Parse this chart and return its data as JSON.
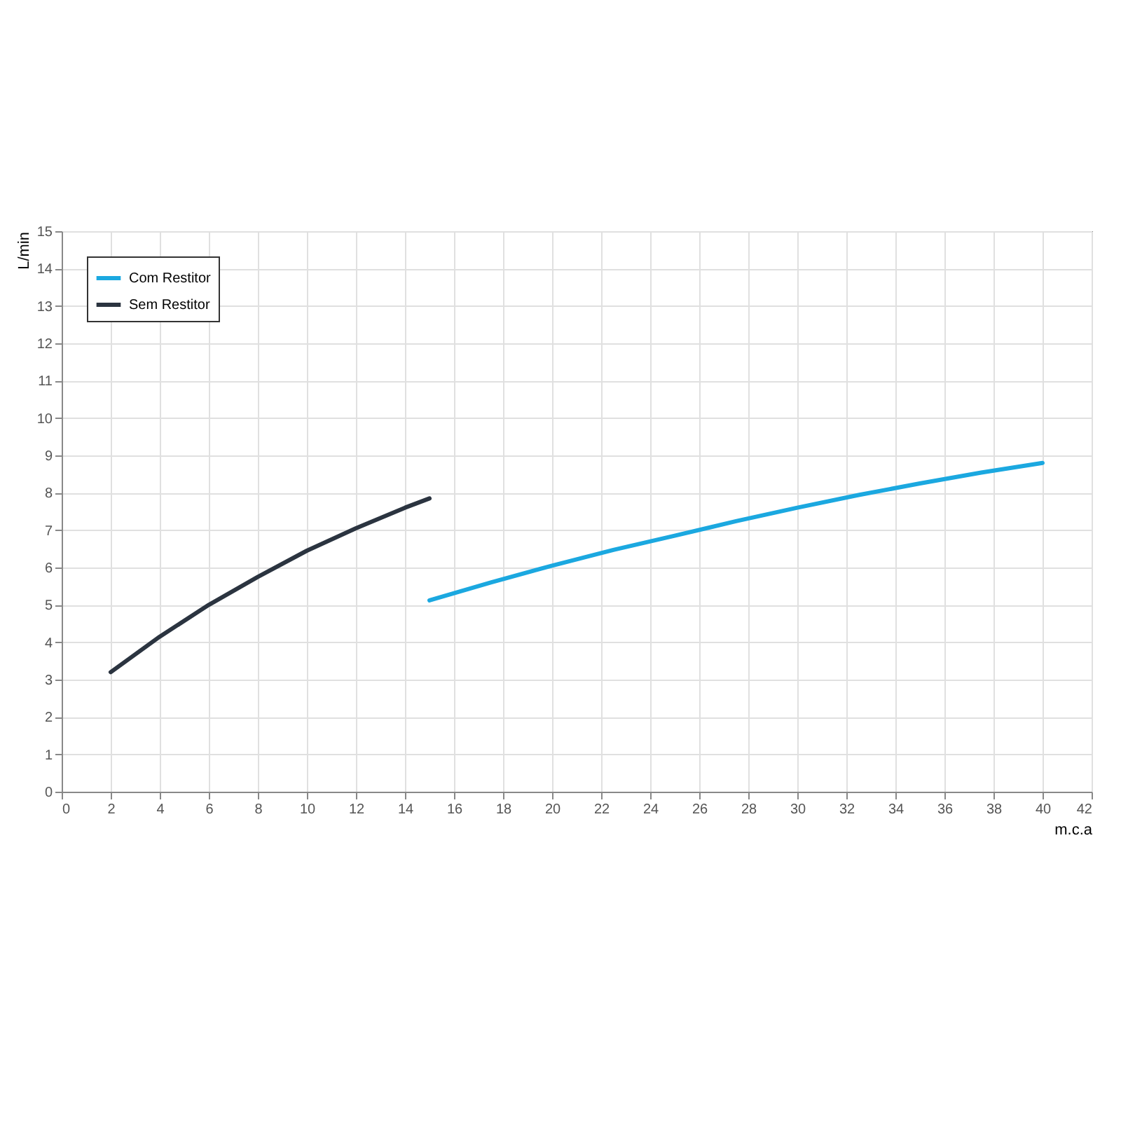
{
  "chart_data": {
    "type": "line",
    "xlabel": "m.c.a",
    "ylabel": "L/min",
    "xlim": [
      0,
      42
    ],
    "xticks": [
      0,
      2,
      4,
      6,
      8,
      10,
      12,
      14,
      16,
      18,
      20,
      22,
      24,
      26,
      28,
      30,
      32,
      34,
      36,
      38,
      40,
      42
    ],
    "ylim": [
      0,
      15
    ],
    "yticks": [
      0,
      1,
      2,
      3,
      4,
      5,
      6,
      7,
      8,
      9,
      10,
      11,
      12,
      13,
      14,
      15
    ],
    "grid": true,
    "legend": "top left",
    "marker": "none",
    "line_style": "solid",
    "series": [
      {
        "name": "Com Restitor",
        "color": "#1ba8e0",
        "x": [
          15,
          17.5,
          20,
          22.5,
          25,
          27.5,
          30,
          32.5,
          35,
          37.5,
          40
        ],
        "values": [
          5.12,
          5.6,
          6.05,
          6.47,
          6.85,
          7.24,
          7.6,
          7.94,
          8.25,
          8.54,
          8.8
        ]
      },
      {
        "name": "Sem Restitor",
        "color": "#2b3440",
        "x": [
          2,
          4,
          6,
          8,
          10,
          12,
          14,
          15
        ],
        "values": [
          3.2,
          4.15,
          5.0,
          5.75,
          6.45,
          7.05,
          7.6,
          7.85
        ]
      }
    ]
  }
}
